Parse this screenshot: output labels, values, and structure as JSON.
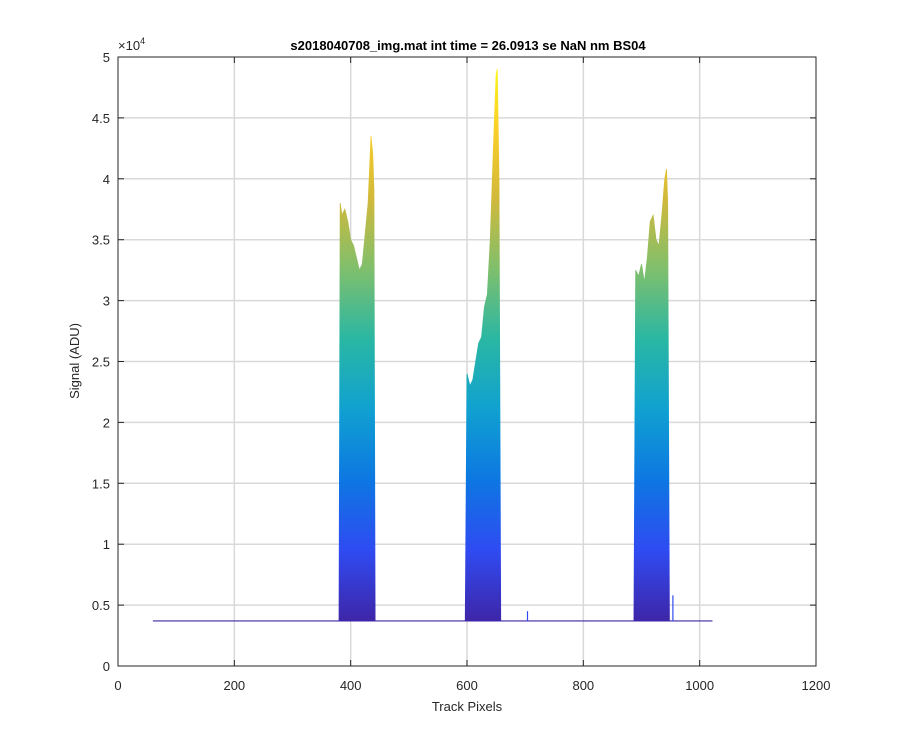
{
  "chart_data": {
    "type": "area",
    "title": "s2018040708_img.mat int time = 26.0913 se  NaN nm BS04",
    "xlabel": "Track Pixels",
    "ylabel": "Signal (ADU)",
    "xlim": [
      0,
      1200
    ],
    "ylim": [
      0,
      50000
    ],
    "xticks": [
      0,
      200,
      400,
      600,
      800,
      1000,
      1200
    ],
    "yticks": [
      0,
      5000,
      10000,
      15000,
      20000,
      25000,
      30000,
      35000,
      40000,
      45000,
      50000
    ],
    "ytick_labels": [
      "0",
      "0.5",
      "1",
      "1.5",
      "2",
      "2.5",
      "3",
      "3.5",
      "4",
      "4.5",
      "5"
    ],
    "yexponent": "×10",
    "yexponent_power": "4",
    "grid": true,
    "baseline_range": [
      60,
      1022
    ],
    "baseline_value": 3700,
    "colormap": [
      "#3e26a8",
      "#2f4bf2",
      "#0d77e2",
      "#10a1d1",
      "#2ab7a3",
      "#80bf6c",
      "#d2b93a",
      "#fbd028",
      "#f9fb15"
    ],
    "peaks": [
      {
        "x": [
          380,
          382,
          385,
          390,
          395,
          400,
          405,
          410,
          415,
          420,
          425,
          430,
          435,
          438,
          440,
          442
        ],
        "y": [
          3700,
          38000,
          37000,
          37500,
          36500,
          35000,
          34500,
          33500,
          32500,
          33000,
          35500,
          38000,
          43500,
          42000,
          39000,
          3700
        ]
      },
      {
        "x": [
          597,
          600,
          605,
          610,
          615,
          620,
          625,
          630,
          635,
          640,
          645,
          650,
          652,
          655,
          658
        ],
        "y": [
          3700,
          24000,
          23000,
          23500,
          25000,
          26500,
          27000,
          29500,
          30500,
          35000,
          42000,
          48500,
          49000,
          40000,
          3700
        ]
      },
      {
        "x": [
          887,
          890,
          895,
          900,
          905,
          910,
          915,
          920,
          925,
          930,
          935,
          940,
          943,
          945,
          948
        ],
        "y": [
          3700,
          32500,
          32000,
          33000,
          31500,
          33500,
          36500,
          37000,
          35000,
          34500,
          37000,
          40000,
          40800,
          38000,
          3700
        ]
      }
    ],
    "spikes": [
      {
        "x": 704,
        "y": 4500
      },
      {
        "x": 954,
        "y": 5800
      }
    ]
  }
}
